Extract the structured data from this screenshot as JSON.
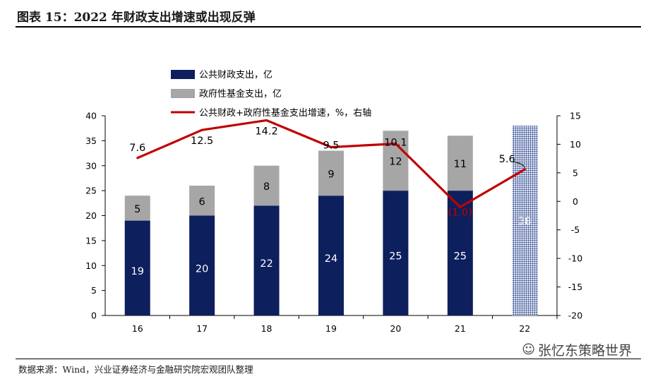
{
  "figure_title": "图表 15：2022 年财政支出增速或出现反弹",
  "source_note": "数据来源：Wind，兴业证券经济与金融研究院宏观团队整理",
  "watermark": "张忆东策略世界",
  "colors": {
    "general_budget": "#0d1f5c",
    "fund_budget": "#a6a6a6",
    "growth_line": "#c00000",
    "forecast_bar": "#1f3b8a"
  },
  "chart_data": {
    "type": "bar",
    "stacked": true,
    "categories": [
      "16",
      "17",
      "18",
      "19",
      "20",
      "21",
      "22"
    ],
    "series": [
      {
        "name": "公共财政支出，亿",
        "axis": "left",
        "values": [
          19,
          20,
          22,
          24,
          25,
          25,
          null
        ],
        "labels": [
          "19",
          "20",
          "22",
          "24",
          "25",
          "25",
          ""
        ]
      },
      {
        "name": "政府性基金支出，亿",
        "axis": "left",
        "values": [
          5,
          6,
          8,
          9,
          12,
          11,
          null
        ],
        "labels": [
          "5",
          "6",
          "8",
          "9",
          "12",
          "11",
          ""
        ]
      },
      {
        "name": "公共财政+政府性基金支出增速，%，右轴",
        "type": "line",
        "axis": "right",
        "values": [
          7.6,
          12.5,
          14.2,
          9.5,
          10.1,
          -1.0,
          5.6
        ],
        "labels": [
          "7.6",
          "12.5",
          "14.2",
          "9.5",
          "10.1",
          "(1.0)",
          "5.6"
        ]
      }
    ],
    "forecast_bar": {
      "category": "22",
      "value": 38,
      "label": "38"
    },
    "y_left": {
      "min": 0,
      "max": 40,
      "ticks": [
        "0",
        "5",
        "10",
        "15",
        "20",
        "25",
        "30",
        "35",
        "40"
      ]
    },
    "y_right": {
      "min": -20,
      "max": 15,
      "ticks": [
        "-20",
        "-15",
        "-10",
        "-5",
        "0",
        "5",
        "10",
        "15"
      ]
    },
    "legend": [
      "公共财政支出，亿",
      "政府性基金支出，亿",
      "公共财政+政府性基金支出增速，%，右轴"
    ],
    "legend_position": "top-left"
  }
}
